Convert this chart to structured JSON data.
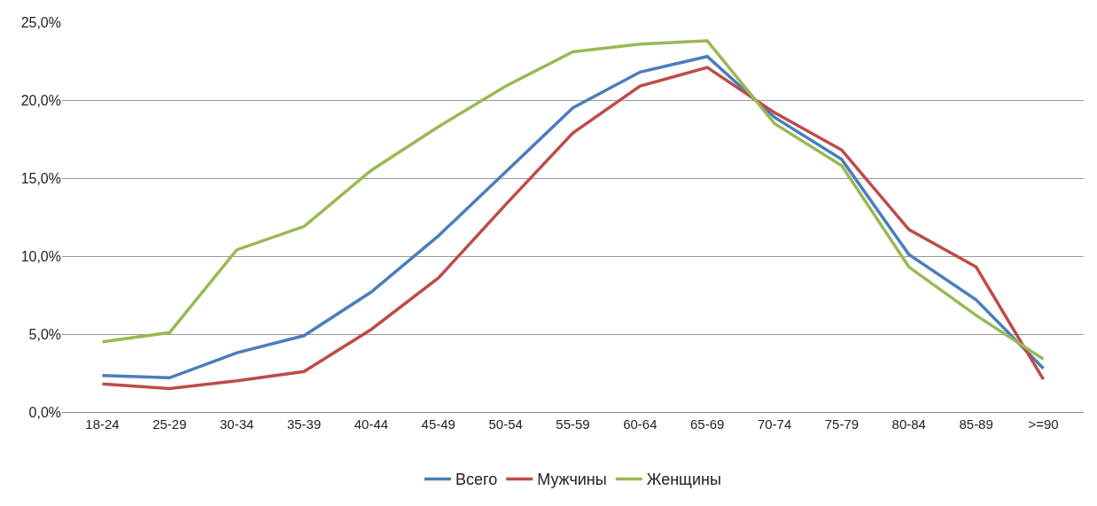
{
  "chart_data": {
    "type": "line",
    "categories": [
      "18-24",
      "25-29",
      "30-34",
      "35-39",
      "40-44",
      "45-49",
      "50-54",
      "55-59",
      "60-64",
      "65-69",
      "70-74",
      "75-79",
      "80-84",
      "85-89",
      ">=90"
    ],
    "series": [
      {
        "name": "Всего",
        "color": "#4a7ebb",
        "values": [
          2.35,
          2.2,
          3.8,
          4.9,
          7.7,
          11.3,
          15.4,
          19.5,
          21.8,
          22.8,
          18.9,
          16.2,
          10.1,
          7.2,
          2.8
        ]
      },
      {
        "name": "Мужчины",
        "color": "#be4b48",
        "values": [
          1.8,
          1.5,
          2.0,
          2.6,
          5.3,
          8.6,
          13.3,
          17.9,
          20.9,
          22.1,
          19.2,
          16.8,
          11.7,
          9.3,
          2.1
        ]
      },
      {
        "name": "Женщины",
        "color": "#98b954",
        "values": [
          4.5,
          5.1,
          10.4,
          11.9,
          15.5,
          18.3,
          20.9,
          23.1,
          23.6,
          23.8,
          18.5,
          15.8,
          9.3,
          6.2,
          3.4
        ]
      }
    ],
    "ylim": [
      0,
      25
    ],
    "yticks": [
      {
        "value": 0,
        "label": "0,0%"
      },
      {
        "value": 5,
        "label": "5,0%"
      },
      {
        "value": 10,
        "label": "10,0%"
      },
      {
        "value": 15,
        "label": "15,0%"
      },
      {
        "value": 20,
        "label": "20,0%"
      },
      {
        "value": 25,
        "label": "25,0%"
      }
    ],
    "grid": "y",
    "legend": "bottom",
    "marker": "none",
    "line_style": "solid"
  }
}
